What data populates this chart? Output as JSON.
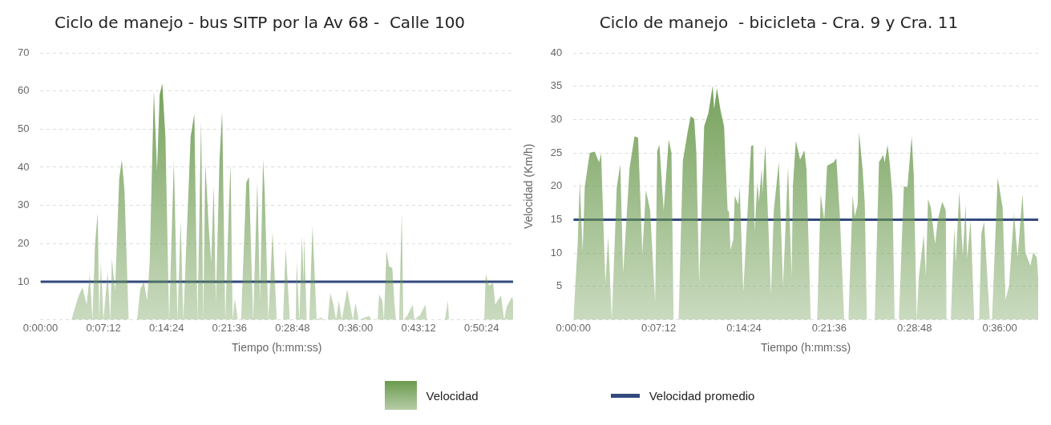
{
  "chart_data": [
    {
      "type": "area",
      "title": "Ciclo de manejo - bus SITP por la Av 68 -  Calle 100",
      "xlabel": "Tiempo (h:mm:ss)",
      "grid": "y",
      "legend": "bottom",
      "xlim": [
        0,
        0.9
      ],
      "xticks": [
        {
          "value": 0,
          "label": "0:00:00"
        },
        {
          "value": 0.12,
          "label": "0:07:12"
        },
        {
          "value": 0.24,
          "label": "0:14:24"
        },
        {
          "value": 0.36,
          "label": "0:21:36"
        },
        {
          "value": 0.48,
          "label": "0:28:48"
        },
        {
          "value": 0.6,
          "label": "0:36:00"
        },
        {
          "value": 0.72,
          "label": "0:43:12"
        },
        {
          "value": 0.84,
          "label": "0:50:24"
        }
      ],
      "ylim": [
        0,
        70
      ],
      "yticks": [
        {
          "value": 0,
          "label": null
        },
        10,
        20,
        30,
        40,
        50,
        60,
        70
      ],
      "series": [
        {
          "name": "Velocidad",
          "color": "#6b9a4e",
          "x": [
            0,
            0.059,
            0.072,
            0.08,
            0.088,
            0.094,
            0.099,
            0.104,
            0.109,
            0.112,
            0.115,
            0.12,
            0.128,
            0.133,
            0.136,
            0.142,
            0.15,
            0.155,
            0.16,
            0.168,
            0.184,
            0.19,
            0.197,
            0.203,
            0.208,
            0.216,
            0.222,
            0.227,
            0.232,
            0.238,
            0.245,
            0.254,
            0.261,
            0.267,
            0.272,
            0.286,
            0.293,
            0.299,
            0.306,
            0.31,
            0.314,
            0.32,
            0.325,
            0.33,
            0.334,
            0.341,
            0.346,
            0.352,
            0.358,
            0.362,
            0.366,
            0.37,
            0.376,
            0.382,
            0.392,
            0.397,
            0.405,
            0.413,
            0.418,
            0.424,
            0.427,
            0.434,
            0.442,
            0.45,
            0.462,
            0.467,
            0.475,
            0.486,
            0.488,
            0.493,
            0.498,
            0.501,
            0.502,
            0.507,
            0.512,
            0.518,
            0.526,
            0.534,
            0.539,
            0.547,
            0.552,
            0.558,
            0.563,
            0.568,
            0.574,
            0.584,
            0.595,
            0.6,
            0.606,
            0.626,
            0.63,
            0.642,
            0.645,
            0.651,
            0.654,
            0.659,
            0.664,
            0.67,
            0.674,
            0.677,
            0.683,
            0.688,
            0.691,
            0.698,
            0.709,
            0.712,
            0.723,
            0.733,
            0.736,
            0.77,
            0.776,
            0.778,
            0.845,
            0.848,
            0.854,
            0.862,
            0.866,
            0.877,
            0.883,
            0.888,
            0.898,
            0.9
          ],
          "values": [
            0,
            0,
            6,
            8.5,
            4,
            12,
            0,
            20,
            28,
            0,
            15,
            0,
            12.5,
            0,
            16,
            7.5,
            37,
            42,
            34,
            0,
            0,
            8,
            10,
            5,
            15,
            60,
            39,
            59,
            62,
            48,
            0,
            41.5,
            0,
            26,
            0,
            48,
            54,
            0,
            52,
            0,
            41,
            25.5,
            15,
            35,
            4.5,
            42,
            54.5,
            0,
            26,
            41,
            0,
            5.5,
            0,
            0,
            36,
            37.5,
            0,
            36,
            5,
            42,
            33.5,
            0,
            23,
            0,
            0,
            18.7,
            0,
            0,
            15.4,
            0,
            22,
            10,
            22,
            0,
            0,
            24.5,
            0,
            0.6,
            0,
            0,
            7,
            4,
            0,
            5,
            0,
            8,
            0,
            4.5,
            0,
            1,
            0,
            0,
            6.7,
            5,
            0,
            18,
            14,
            13.6,
            4.5,
            0,
            0,
            28,
            0,
            1,
            4,
            0,
            1.3,
            4,
            0,
            0,
            5,
            0,
            0,
            12,
            9,
            9.6,
            4,
            6.4,
            0,
            3.5,
            6,
            5
          ]
        },
        {
          "name": "Velocidad promedio",
          "type": "line",
          "color": "#34497e",
          "x": [
            0,
            0.9
          ],
          "values": [
            10,
            10
          ]
        }
      ]
    },
    {
      "type": "area",
      "title": "Ciclo de manejo  - bicicleta - Cra. 9 y Cra. 11",
      "xlabel": "Tiempo (h:mm:ss)",
      "ylabel": "Velocidad (Km/h)",
      "grid": "y",
      "xlim": [
        0,
        0.654
      ],
      "xticks": [
        {
          "value": 0,
          "label": "0:00:00"
        },
        {
          "value": 0.12,
          "label": "0:07:12"
        },
        {
          "value": 0.24,
          "label": "0:14:24"
        },
        {
          "value": 0.36,
          "label": "0:21:36"
        },
        {
          "value": 0.48,
          "label": "0:28:48"
        },
        {
          "value": 0.6,
          "label": "0:36:00"
        }
      ],
      "ylim": [
        0,
        40
      ],
      "yticks": [
        {
          "value": 0,
          "label": null
        },
        5,
        10,
        15,
        20,
        25,
        30,
        35,
        40
      ],
      "series": [
        {
          "color": "#6b9a4e",
          "x": [
            0,
            0.006,
            0.009,
            0.013,
            0.016,
            0.023,
            0.03,
            0.036,
            0.039,
            0.045,
            0.049,
            0.054,
            0.061,
            0.066,
            0.07,
            0.079,
            0.086,
            0.091,
            0.097,
            0.102,
            0.108,
            0.115,
            0.118,
            0.121,
            0.127,
            0.134,
            0.138,
            0.141,
            0.148,
            0.154,
            0.161,
            0.165,
            0.17,
            0.173,
            0.177,
            0.184,
            0.19,
            0.196,
            0.198,
            0.202,
            0.207,
            0.212,
            0.217,
            0.219,
            0.221,
            0.225,
            0.227,
            0.232,
            0.234,
            0.239,
            0.25,
            0.253,
            0.255,
            0.259,
            0.261,
            0.265,
            0.266,
            0.27,
            0.278,
            0.282,
            0.289,
            0.295,
            0.302,
            0.307,
            0.309,
            0.313,
            0.319,
            0.325,
            0.328,
            0.334,
            0.343,
            0.348,
            0.353,
            0.357,
            0.366,
            0.37,
            0.375,
            0.381,
            0.387,
            0.393,
            0.396,
            0.4,
            0.402,
            0.407,
            0.41,
            0.413,
            0.424,
            0.43,
            0.436,
            0.438,
            0.442,
            0.445,
            0.449,
            0.452,
            0.458,
            0.465,
            0.47,
            0.476,
            0.479,
            0.483,
            0.486,
            0.493,
            0.496,
            0.499,
            0.503,
            0.509,
            0.513,
            0.519,
            0.524,
            0.525,
            0.531,
            0.536,
            0.538,
            0.543,
            0.548,
            0.552,
            0.554,
            0.559,
            0.564,
            0.571,
            0.574,
            0.578,
            0.581,
            0.586,
            0.589,
            0.597,
            0.604,
            0.608,
            0.613,
            0.62,
            0.625,
            0.632,
            0.636,
            0.643,
            0.647,
            0.652,
            0.654
          ],
          "values": [
            0,
            11.4,
            20.7,
            10.3,
            20,
            25,
            25.2,
            23.6,
            24.9,
            5.5,
            12.5,
            0,
            19.9,
            23.3,
            7,
            22.7,
            27.5,
            27.3,
            10,
            19.4,
            16.4,
            2.7,
            25.3,
            26.2,
            16.4,
            27,
            25,
            0,
            0,
            23.8,
            28.3,
            30.5,
            30.1,
            25,
            5.5,
            29,
            31,
            35.1,
            31.6,
            34.7,
            31.4,
            29,
            16.4,
            16.2,
            10.5,
            12,
            18.6,
            17.3,
            19.9,
            4.2,
            26,
            26.2,
            13.3,
            20.7,
            17.7,
            22.7,
            19,
            26.2,
            3.8,
            16.4,
            23.6,
            5.1,
            22.9,
            6.4,
            20.3,
            26.8,
            24,
            25.4,
            22.5,
            0,
            0,
            18.8,
            14.9,
            23.1,
            23.6,
            24.2,
            15.5,
            0,
            0,
            18.6,
            15.5,
            17.3,
            28.1,
            22.5,
            17.5,
            0,
            0,
            23.6,
            24.7,
            23.6,
            26.2,
            23.6,
            18.6,
            0,
            0,
            20,
            19.9,
            27.5,
            21.6,
            0,
            6.4,
            12.7,
            6.6,
            18.1,
            16.8,
            11.4,
            15.1,
            17.7,
            16.4,
            0,
            0,
            13.8,
            8.6,
            19.2,
            9.7,
            17.3,
            9.2,
            14.9,
            0,
            0,
            12.9,
            14.7,
            9,
            0,
            0,
            21.3,
            16.8,
            3,
            5.1,
            16,
            9.4,
            18.8,
            10.1,
            8.1,
            10.1,
            9.4,
            6.4
          ]
        },
        {
          "type": "line",
          "color": "#34497e",
          "x": [
            0,
            0.654
          ],
          "values": [
            15,
            15
          ]
        }
      ]
    }
  ]
}
